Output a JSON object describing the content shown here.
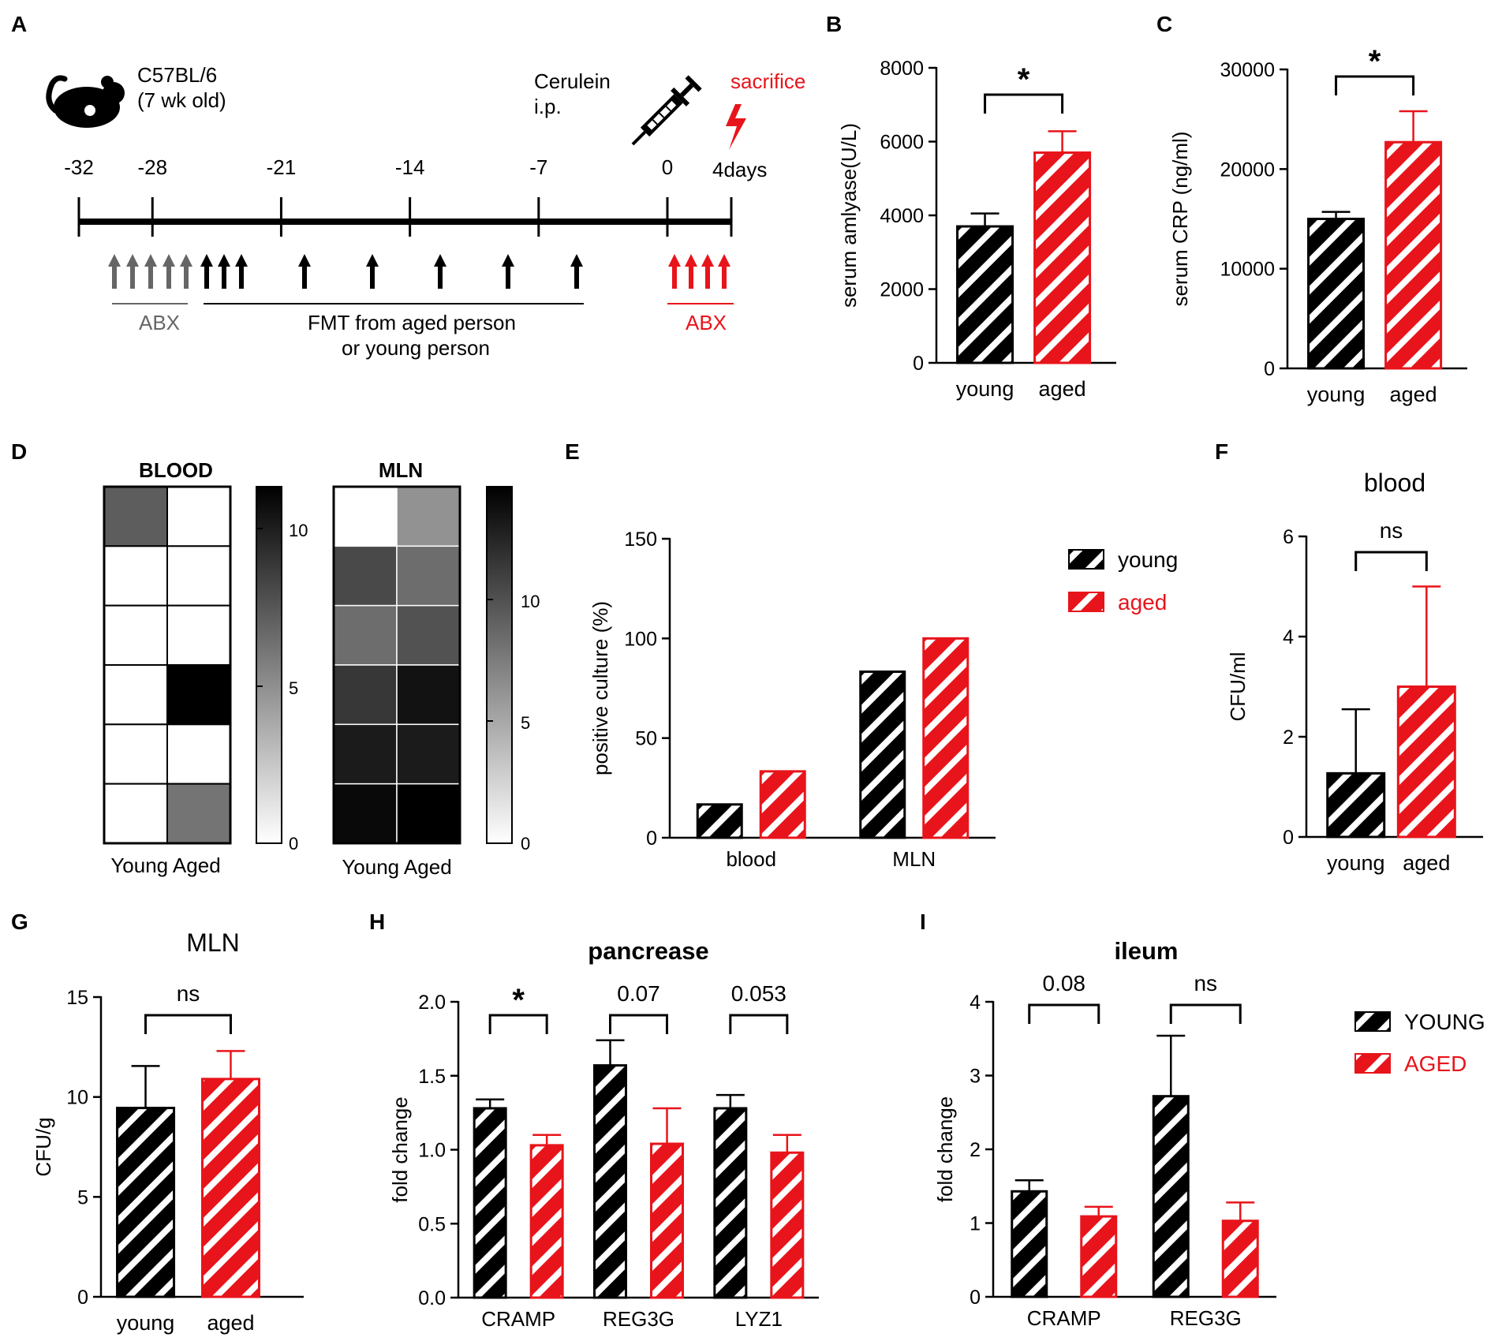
{
  "colors": {
    "young": "#000000",
    "aged": "#e8141b",
    "gray": "#666666",
    "axis": "#000000"
  },
  "panels": {
    "A": {
      "letter": "A",
      "strain": "C57BL/6",
      "age": "(7 wk old)",
      "cerulein": "Cerulein",
      "ip": "i.p.",
      "sacrifice": "sacrifice",
      "days4": "4days",
      "ticks": [
        -32,
        -28,
        -21,
        -14,
        -7,
        0
      ],
      "abx_pre": "ABX",
      "fmt_line1": "FMT from aged person",
      "fmt_line2": "or young person",
      "abx_post": "ABX",
      "icons": [
        "mouse-icon",
        "syringe-icon",
        "lightning-icon"
      ]
    },
    "D": {
      "letter": "D",
      "blood_title": "BLOOD",
      "mln_title": "MLN",
      "xlabels_blood": "Young Aged",
      "xlabels_mln": "Young Aged",
      "blood_scale_ticks": [
        "10",
        "5",
        "0"
      ],
      "mln_scale_ticks": [
        "10",
        "5",
        "0"
      ]
    }
  },
  "chart_data": [
    {
      "id": "B",
      "letter": "B",
      "type": "bar",
      "categories": [
        "young",
        "aged"
      ],
      "values": [
        3700,
        5700
      ],
      "errors": [
        350,
        580
      ],
      "title": "",
      "xlabel": "",
      "ylabel": "serum amlyase(U/L)",
      "ylim": [
        0,
        8000
      ],
      "yticks": [
        0,
        2000,
        4000,
        6000,
        8000
      ],
      "sig": [
        {
          "from": 0,
          "to": 1,
          "label": "*"
        }
      ]
    },
    {
      "id": "C",
      "letter": "C",
      "type": "bar",
      "categories": [
        "young",
        "aged"
      ],
      "values": [
        15000,
        22700
      ],
      "errors": [
        700,
        3100
      ],
      "title": "",
      "xlabel": "",
      "ylabel": "serum CRP (ng/ml)",
      "ylim": [
        0,
        30000
      ],
      "yticks": [
        0,
        10000,
        20000,
        30000
      ],
      "sig": [
        {
          "from": 0,
          "to": 1,
          "label": "*"
        }
      ]
    },
    {
      "id": "D",
      "type": "heatmap",
      "colormap": "gray-white-to-black",
      "panels": [
        {
          "title": "BLOOD",
          "columns": [
            "Young",
            "Aged"
          ],
          "scale_max": 11,
          "rows": [
            [
              7,
              0
            ],
            [
              0,
              0
            ],
            [
              0,
              0
            ],
            [
              0,
              11
            ],
            [
              0,
              0
            ],
            [
              0,
              6
            ]
          ]
        },
        {
          "title": "MLN",
          "columns": [
            "Young",
            "Aged"
          ],
          "scale_max": 14,
          "rows": [
            [
              0,
              6
            ],
            [
              10,
              8
            ],
            [
              8,
              9.5
            ],
            [
              11,
              13
            ],
            [
              12.5,
              12.5
            ],
            [
              13.5,
              14
            ]
          ]
        }
      ]
    },
    {
      "id": "E",
      "letter": "E",
      "type": "bar",
      "categories": [
        "blood",
        "MLN"
      ],
      "series": [
        {
          "name": "young",
          "values": [
            16.7,
            83.3
          ]
        },
        {
          "name": "aged",
          "values": [
            33.3,
            100
          ]
        }
      ],
      "title": "",
      "xlabel": "",
      "ylabel": "positive culture  (%)",
      "ylim": [
        0,
        150
      ],
      "yticks": [
        0,
        50,
        100,
        150
      ],
      "legend": [
        "young",
        "aged"
      ]
    },
    {
      "id": "F",
      "letter": "F",
      "type": "bar",
      "categories": [
        "young",
        "aged"
      ],
      "values": [
        1.27,
        3.0
      ],
      "errors": [
        1.28,
        2.0
      ],
      "title": "blood",
      "xlabel": "",
      "ylabel": "CFU/ml",
      "ylim": [
        0,
        6
      ],
      "yticks": [
        0,
        2,
        4,
        6
      ],
      "sig": [
        {
          "from": 0,
          "to": 1,
          "label": "ns"
        }
      ]
    },
    {
      "id": "G",
      "letter": "G",
      "type": "bar",
      "categories": [
        "young",
        "aged"
      ],
      "values": [
        9.45,
        10.9
      ],
      "errors": [
        2.1,
        1.4
      ],
      "title": "MLN",
      "xlabel": "",
      "ylabel": "CFU/g",
      "ylim": [
        0,
        15
      ],
      "yticks": [
        0,
        5,
        10,
        15
      ],
      "sig": [
        {
          "from": 0,
          "to": 1,
          "label": "ns"
        }
      ]
    },
    {
      "id": "H",
      "letter": "H",
      "type": "bar",
      "categories": [
        "CRAMP",
        "REG3G",
        "LYZ1"
      ],
      "series": [
        {
          "name": "YOUNG",
          "values": [
            1.28,
            1.57,
            1.28
          ],
          "errors": [
            0.06,
            0.17,
            0.09
          ]
        },
        {
          "name": "AGED",
          "values": [
            1.03,
            1.04,
            0.98
          ],
          "errors": [
            0.07,
            0.24,
            0.12
          ]
        }
      ],
      "title": "pancrease",
      "xlabel": "",
      "ylabel": "fold change",
      "ylim": [
        0,
        2.0
      ],
      "yticks": [
        0.0,
        0.5,
        1.0,
        1.5,
        2.0
      ],
      "tick_decimals": 1,
      "sig": [
        {
          "cat": 0,
          "label": "*"
        },
        {
          "cat": 1,
          "label": "0.07"
        },
        {
          "cat": 2,
          "label": "0.053"
        }
      ]
    },
    {
      "id": "I",
      "letter": "I",
      "type": "bar",
      "categories": [
        "CRAMP",
        "REG3G"
      ],
      "series": [
        {
          "name": "YOUNG",
          "values": [
            1.43,
            2.72
          ],
          "errors": [
            0.15,
            0.82
          ]
        },
        {
          "name": "AGED",
          "values": [
            1.09,
            1.03
          ],
          "errors": [
            0.13,
            0.25
          ]
        }
      ],
      "title": "ileum",
      "xlabel": "",
      "ylabel": "fold change",
      "ylim": [
        0,
        4
      ],
      "yticks": [
        0,
        1,
        2,
        3,
        4
      ],
      "sig": [
        {
          "cat": 0,
          "label": "0.08"
        },
        {
          "cat": 1,
          "label": "ns"
        }
      ],
      "legend": [
        "YOUNG",
        "AGED"
      ]
    }
  ]
}
